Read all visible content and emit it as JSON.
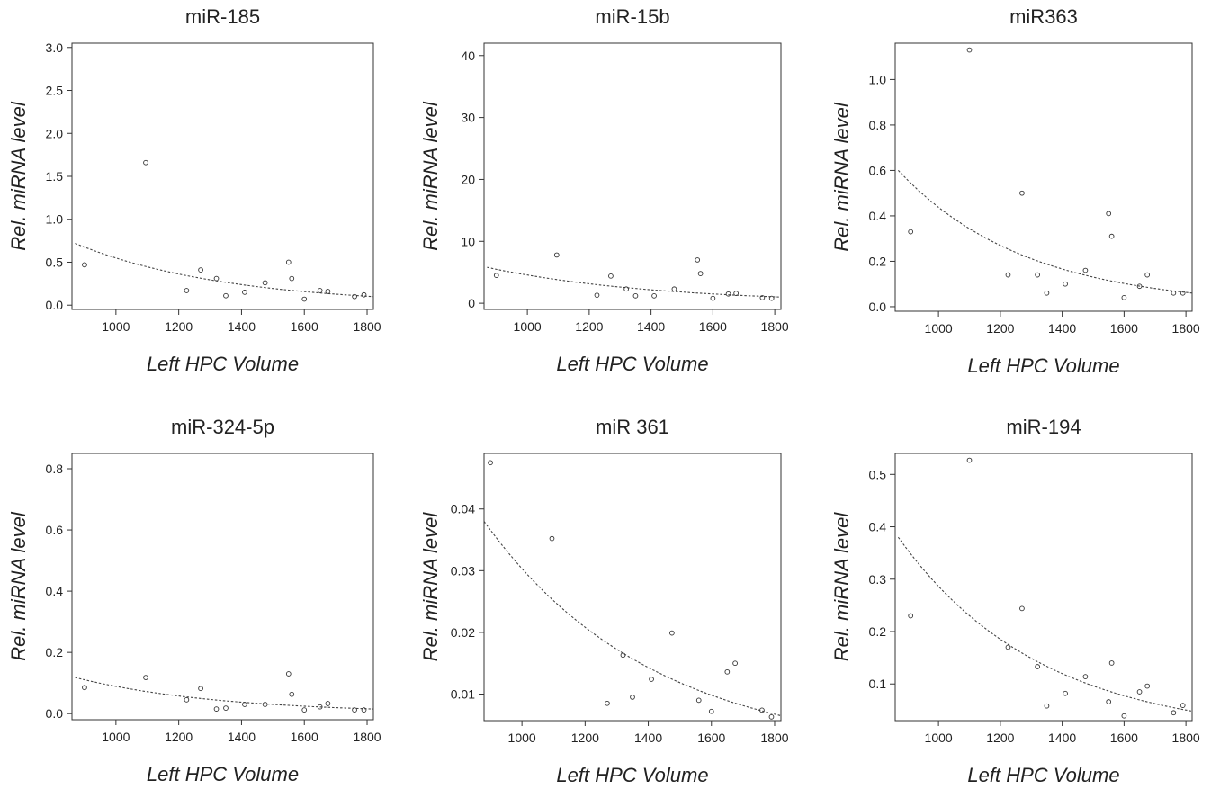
{
  "chart_data": [
    {
      "type": "scatter",
      "title": "miR-185",
      "xlabel": "Left HPC Volume",
      "ylabel": "Rel. miRNA level",
      "xticks": [
        "1000",
        "1200",
        "1400",
        "1600",
        "1800"
      ],
      "yticks": [
        "0.0",
        "0.5",
        "1.0",
        "1.5",
        "2.0",
        "2.5",
        "3.0"
      ],
      "xlim": [
        860,
        1820
      ],
      "ylim": [
        -0.05,
        3.05
      ],
      "points": [
        {
          "x": 900,
          "y": 0.47
        },
        {
          "x": 1095,
          "y": 1.66
        },
        {
          "x": 1225,
          "y": 0.17
        },
        {
          "x": 1270,
          "y": 0.41
        },
        {
          "x": 1320,
          "y": 0.31
        },
        {
          "x": 1350,
          "y": 0.11
        },
        {
          "x": 1410,
          "y": 0.15
        },
        {
          "x": 1475,
          "y": 0.26
        },
        {
          "x": 1550,
          "y": 0.5
        },
        {
          "x": 1560,
          "y": 0.31
        },
        {
          "x": 1600,
          "y": 0.07
        },
        {
          "x": 1650,
          "y": 0.17
        },
        {
          "x": 1675,
          "y": 0.16
        },
        {
          "x": 1760,
          "y": 0.1
        },
        {
          "x": 1790,
          "y": 0.12
        }
      ],
      "trend": {
        "type": "exponential",
        "x": [
          870,
          1820
        ],
        "y": [
          0.72,
          0.1
        ]
      }
    },
    {
      "type": "scatter",
      "title": "miR-15b",
      "xlabel": "Left HPC Volume",
      "ylabel": "Rel. miRNA level",
      "xticks": [
        "1000",
        "1200",
        "1400",
        "1600",
        "1800"
      ],
      "yticks": [
        "0",
        "10",
        "20",
        "30",
        "40"
      ],
      "xlim": [
        860,
        1820
      ],
      "ylim": [
        -1,
        42
      ],
      "points": [
        {
          "x": 900,
          "y": 4.5
        },
        {
          "x": 1095,
          "y": 7.8
        },
        {
          "x": 1225,
          "y": 1.3
        },
        {
          "x": 1270,
          "y": 4.4
        },
        {
          "x": 1320,
          "y": 2.3
        },
        {
          "x": 1350,
          "y": 1.2
        },
        {
          "x": 1410,
          "y": 1.2
        },
        {
          "x": 1475,
          "y": 2.3
        },
        {
          "x": 1550,
          "y": 7.0
        },
        {
          "x": 1560,
          "y": 4.8
        },
        {
          "x": 1600,
          "y": 0.8
        },
        {
          "x": 1650,
          "y": 1.5
        },
        {
          "x": 1675,
          "y": 1.6
        },
        {
          "x": 1760,
          "y": 0.9
        },
        {
          "x": 1790,
          "y": 0.8
        }
      ],
      "trend": {
        "type": "exponential",
        "x": [
          870,
          1820
        ],
        "y": [
          5.8,
          1.0
        ]
      }
    },
    {
      "type": "scatter",
      "title": "miR363",
      "xlabel": "Left HPC Volume",
      "ylabel": "Rel. miRNA level",
      "xticks": [
        "1000",
        "1200",
        "1400",
        "1600",
        "1800"
      ],
      "yticks": [
        "0.0",
        "0.2",
        "0.4",
        "0.6",
        "0.8",
        "1.0"
      ],
      "xlim": [
        860,
        1820
      ],
      "ylim": [
        -0.02,
        1.16
      ],
      "points": [
        {
          "x": 910,
          "y": 0.33
        },
        {
          "x": 1100,
          "y": 1.13
        },
        {
          "x": 1225,
          "y": 0.14
        },
        {
          "x": 1270,
          "y": 0.5
        },
        {
          "x": 1320,
          "y": 0.14
        },
        {
          "x": 1350,
          "y": 0.06
        },
        {
          "x": 1410,
          "y": 0.1
        },
        {
          "x": 1475,
          "y": 0.16
        },
        {
          "x": 1550,
          "y": 0.41
        },
        {
          "x": 1560,
          "y": 0.31
        },
        {
          "x": 1600,
          "y": 0.04
        },
        {
          "x": 1650,
          "y": 0.09
        },
        {
          "x": 1675,
          "y": 0.14
        },
        {
          "x": 1760,
          "y": 0.06
        },
        {
          "x": 1790,
          "y": 0.06
        }
      ],
      "trend": {
        "type": "exponential",
        "x": [
          870,
          1820
        ],
        "y": [
          0.6,
          0.06
        ]
      }
    },
    {
      "type": "scatter",
      "title": "miR-324-5p",
      "xlabel": "Left HPC Volume",
      "ylabel": "Rel. miRNA level",
      "xticks": [
        "1000",
        "1200",
        "1400",
        "1600",
        "1800"
      ],
      "yticks": [
        "0.0",
        "0.2",
        "0.4",
        "0.6",
        "0.8"
      ],
      "xlim": [
        860,
        1820
      ],
      "ylim": [
        -0.02,
        0.85
      ],
      "points": [
        {
          "x": 900,
          "y": 0.085
        },
        {
          "x": 1095,
          "y": 0.118
        },
        {
          "x": 1225,
          "y": 0.045
        },
        {
          "x": 1270,
          "y": 0.082
        },
        {
          "x": 1320,
          "y": 0.015
        },
        {
          "x": 1350,
          "y": 0.018
        },
        {
          "x": 1410,
          "y": 0.03
        },
        {
          "x": 1475,
          "y": 0.03
        },
        {
          "x": 1550,
          "y": 0.13
        },
        {
          "x": 1560,
          "y": 0.063
        },
        {
          "x": 1600,
          "y": 0.012
        },
        {
          "x": 1650,
          "y": 0.022
        },
        {
          "x": 1675,
          "y": 0.033
        },
        {
          "x": 1760,
          "y": 0.012
        },
        {
          "x": 1790,
          "y": 0.012
        }
      ],
      "trend": {
        "type": "exponential",
        "x": [
          870,
          1820
        ],
        "y": [
          0.118,
          0.015
        ]
      }
    },
    {
      "type": "scatter",
      "title": "miR 361",
      "xlabel": "Left HPC Volume",
      "ylabel": "Rel. miRNA level",
      "xticks": [
        "1000",
        "1200",
        "1400",
        "1600",
        "1800"
      ],
      "yticks": [
        "0.01",
        "0.02",
        "0.03",
        "0.04"
      ],
      "xlim": [
        880,
        1820
      ],
      "ylim": [
        0.0057,
        0.049
      ],
      "points": [
        {
          "x": 900,
          "y": 0.0475
        },
        {
          "x": 1095,
          "y": 0.0352
        },
        {
          "x": 1270,
          "y": 0.0085
        },
        {
          "x": 1320,
          "y": 0.0163
        },
        {
          "x": 1350,
          "y": 0.0095
        },
        {
          "x": 1410,
          "y": 0.0124
        },
        {
          "x": 1475,
          "y": 0.0199
        },
        {
          "x": 1560,
          "y": 0.009
        },
        {
          "x": 1600,
          "y": 0.0072
        },
        {
          "x": 1650,
          "y": 0.0136
        },
        {
          "x": 1675,
          "y": 0.015
        },
        {
          "x": 1760,
          "y": 0.0074
        },
        {
          "x": 1790,
          "y": 0.0063
        }
      ],
      "trend": {
        "type": "exponential",
        "x": [
          880,
          1820
        ],
        "y": [
          0.038,
          0.0065
        ]
      }
    },
    {
      "type": "scatter",
      "title": "miR-194",
      "xlabel": "Left HPC Volume",
      "ylabel": "Rel. miRNA level",
      "xticks": [
        "1000",
        "1200",
        "1400",
        "1600",
        "1800"
      ],
      "yticks": [
        "0.1",
        "0.2",
        "0.3",
        "0.4",
        "0.5"
      ],
      "xlim": [
        860,
        1820
      ],
      "ylim": [
        0.03,
        0.54
      ],
      "points": [
        {
          "x": 910,
          "y": 0.23
        },
        {
          "x": 1100,
          "y": 0.527
        },
        {
          "x": 1225,
          "y": 0.17
        },
        {
          "x": 1270,
          "y": 0.244
        },
        {
          "x": 1320,
          "y": 0.133
        },
        {
          "x": 1350,
          "y": 0.058
        },
        {
          "x": 1410,
          "y": 0.082
        },
        {
          "x": 1475,
          "y": 0.114
        },
        {
          "x": 1550,
          "y": 0.066
        },
        {
          "x": 1560,
          "y": 0.14
        },
        {
          "x": 1600,
          "y": 0.039
        },
        {
          "x": 1650,
          "y": 0.085
        },
        {
          "x": 1675,
          "y": 0.096
        },
        {
          "x": 1760,
          "y": 0.045
        },
        {
          "x": 1790,
          "y": 0.059
        }
      ],
      "trend": {
        "type": "exponential",
        "x": [
          870,
          1820
        ],
        "y": [
          0.38,
          0.048
        ]
      }
    }
  ]
}
